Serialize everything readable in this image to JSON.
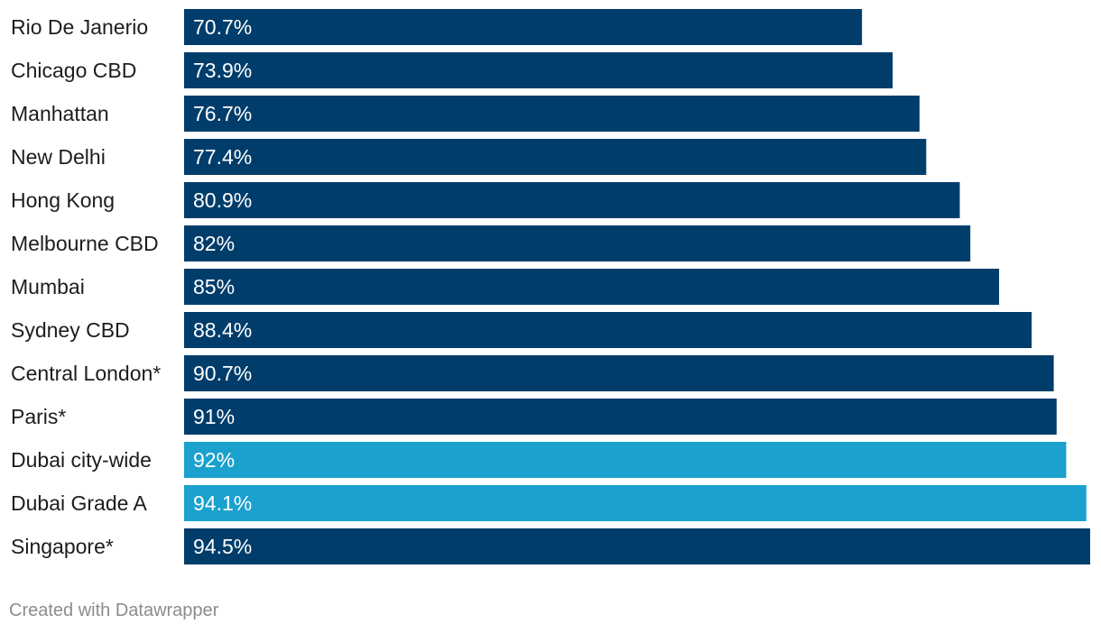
{
  "chart_data": {
    "type": "bar",
    "orientation": "horizontal",
    "categories": [
      "Rio De Janerio",
      "Chicago CBD",
      "Manhattan",
      "New Delhi",
      "Hong Kong",
      "Melbourne CBD",
      "Mumbai",
      "Sydney CBD",
      "Central London*",
      "Paris*",
      "Dubai city-wide",
      "Dubai Grade A",
      "Singapore*"
    ],
    "values": [
      70.7,
      73.9,
      76.7,
      77.4,
      80.9,
      82,
      85,
      88.4,
      90.7,
      91,
      92,
      94.1,
      94.5
    ],
    "value_labels": [
      "70.7%",
      "73.9%",
      "76.7%",
      "77.4%",
      "80.9%",
      "82%",
      "85%",
      "88.4%",
      "90.7%",
      "91%",
      "92%",
      "94.1%",
      "94.5%"
    ],
    "highlighted": [
      false,
      false,
      false,
      false,
      false,
      false,
      false,
      false,
      false,
      false,
      true,
      true,
      false
    ],
    "title": "",
    "xlabel": "",
    "ylabel": "",
    "grid": false,
    "legend": "none",
    "colors": {
      "default_bar": "#003d6b",
      "highlight_bar": "#1aa1ce",
      "value_text": "#ffffff",
      "category_text": "#1d1d1d"
    }
  },
  "footer": {
    "credit": "Created with Datawrapper"
  }
}
